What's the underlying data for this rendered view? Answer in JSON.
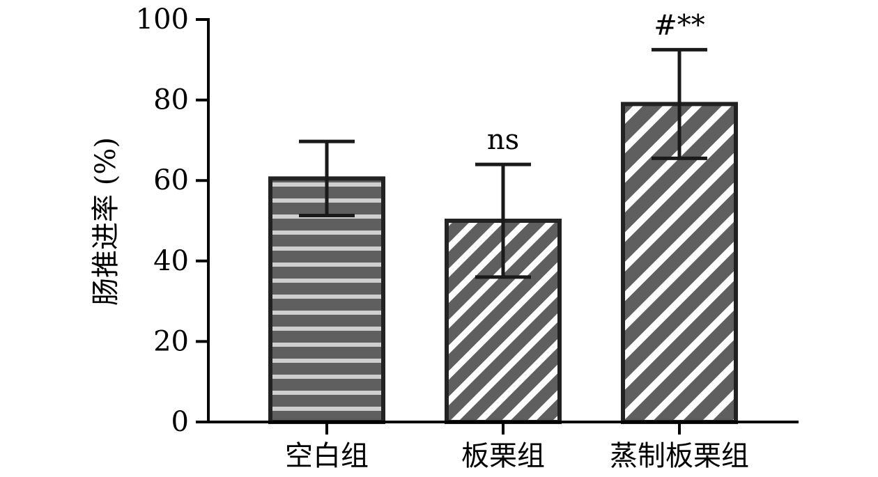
{
  "chart_data": {
    "type": "bar",
    "title": "",
    "xlabel": "",
    "ylabel": "肠推进率 (%)",
    "ylim": [
      0,
      100
    ],
    "yticks": [
      0,
      20,
      40,
      60,
      80,
      100
    ],
    "grid": false,
    "categories": [
      "空白组",
      "板栗组",
      "蒸制板栗组"
    ],
    "values": [
      60.5,
      50,
      79
    ],
    "error": [
      9.2,
      14,
      13.5
    ],
    "annotations": [
      "",
      "ns",
      "#**"
    ],
    "patterns": [
      "horizontal-stripes",
      "diagonal-stripes-thin",
      "diagonal-stripes-wide"
    ],
    "colors": {
      "bar": "#5f5f5f",
      "stripe_light": "#cfcfcf",
      "stripe_white": "#ffffff",
      "axis": "#000000",
      "error": "#1a1a1a"
    }
  }
}
